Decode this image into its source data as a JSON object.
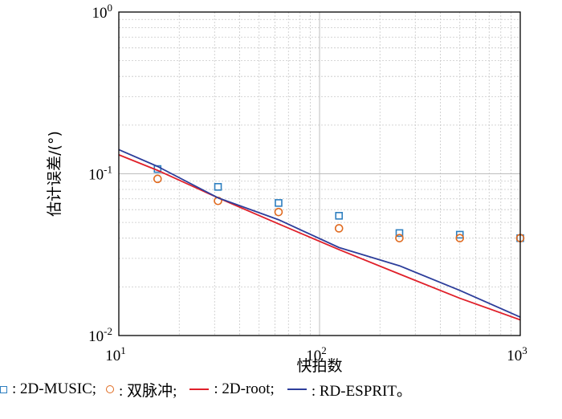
{
  "chart_data": {
    "type": "line",
    "title": "",
    "xlabel": "快拍数",
    "ylabel": "估计误差/(°)",
    "xscale": "log",
    "yscale": "log",
    "xlim": [
      10,
      1000
    ],
    "ylim": [
      0.01,
      1
    ],
    "grid": true,
    "x_ticks": [
      {
        "base": "10",
        "exp": "1"
      },
      {
        "base": "10",
        "exp": "2"
      },
      {
        "base": "10",
        "exp": "3"
      }
    ],
    "y_ticks": [
      {
        "base": "10",
        "exp": "-2"
      },
      {
        "base": "10",
        "exp": "-1"
      },
      {
        "base": "10",
        "exp": "0"
      }
    ],
    "series": [
      {
        "name": "2D-MUSIC",
        "style": "square-marker",
        "color": "#2e7fc0",
        "x": [
          15.6,
          31.2,
          62.5,
          125,
          250,
          500,
          1000
        ],
        "y": [
          0.107,
          0.083,
          0.066,
          0.055,
          0.043,
          0.042,
          0.04
        ]
      },
      {
        "name": "双脉冲",
        "style": "circle-marker",
        "color": "#e06a1f",
        "x": [
          15.6,
          31.2,
          62.5,
          125,
          250,
          500,
          1000
        ],
        "y": [
          0.093,
          0.068,
          0.058,
          0.046,
          0.04,
          0.04,
          0.04
        ]
      },
      {
        "name": "2D-root",
        "style": "line",
        "color": "#e0202a",
        "x": [
          10,
          15.6,
          31.2,
          62.5,
          125,
          250,
          500,
          1000
        ],
        "y": [
          0.131,
          0.105,
          0.071,
          0.049,
          0.034,
          0.024,
          0.017,
          0.0125
        ]
      },
      {
        "name": "RD-ESPRIT",
        "style": "line",
        "color": "#2d3e9b",
        "x": [
          10,
          15.6,
          31.2,
          62.5,
          125,
          250,
          500,
          1000
        ],
        "y": [
          0.141,
          0.111,
          0.071,
          0.052,
          0.035,
          0.027,
          0.019,
          0.013
        ]
      }
    ]
  },
  "legend": {
    "items": [
      {
        "sep": ": ",
        "label": "2D-MUSIC;"
      },
      {
        "sep": ": ",
        "label": "双脉冲;"
      },
      {
        "sep": ": ",
        "label": "2D-root;"
      },
      {
        "sep": ": ",
        "label": "RD-ESPRIT。"
      }
    ]
  }
}
